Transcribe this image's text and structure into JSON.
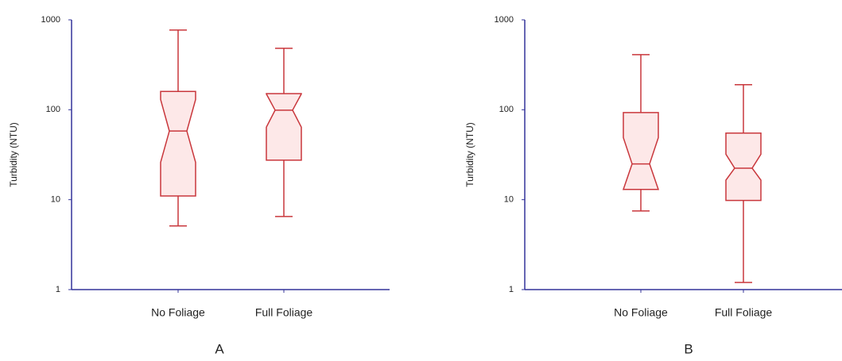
{
  "chart_data": [
    {
      "type": "box",
      "caption": "A",
      "ylabel": "Turbidity (NTU)",
      "log_scale": true,
      "categories": [
        "No Foliage",
        "Full Foliage"
      ],
      "min": [
        5.1,
        6.5
      ],
      "q1": [
        11,
        27.5
      ],
      "notch_low": [
        26,
        64
      ],
      "median": [
        58,
        99
      ],
      "notch_high": [
        130,
        150
      ],
      "q3": [
        160,
        151
      ],
      "max": [
        770,
        482
      ],
      "ylim": [
        1,
        1000
      ],
      "yticks": [
        1,
        10,
        100,
        1000
      ],
      "color": "#c9373c",
      "fill": "#fde8e8",
      "axis_color": "#33339a"
    },
    {
      "type": "box",
      "caption": "B",
      "ylabel": "Turbidity (NTU)",
      "log_scale": true,
      "categories": [
        "No Foliage",
        "Full Foliage"
      ],
      "min": [
        7.5,
        1.2
      ],
      "q1": [
        13,
        9.8
      ],
      "notch_low": [
        12.7,
        16.5
      ],
      "median": [
        25,
        22.4
      ],
      "notch_high": [
        49,
        32
      ],
      "q3": [
        93,
        55
      ],
      "max": [
        410,
        190
      ],
      "ylim": [
        1,
        1000
      ],
      "yticks": [
        1,
        10,
        100,
        1000
      ],
      "color": "#c9373c",
      "fill": "#fde8e8",
      "axis_color": "#33339a"
    }
  ]
}
